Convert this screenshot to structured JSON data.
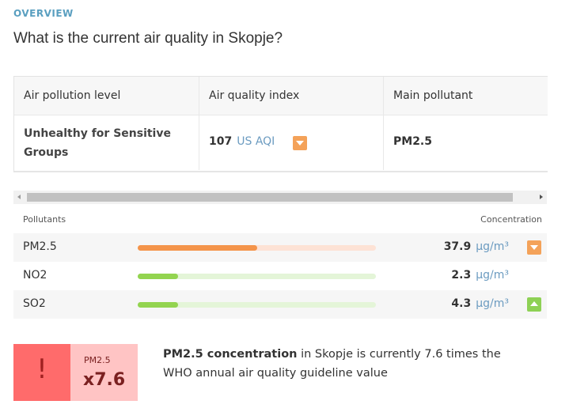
{
  "overview_label": "OVERVIEW",
  "question": "What is the current air quality in Skopje?",
  "summary_table": {
    "headers": [
      "Air pollution level",
      "Air quality index",
      "Main pollutant"
    ],
    "level": "Unhealthy for Sensitive Groups",
    "aqi_value": "107",
    "aqi_unit": "US AQI",
    "aqi_trend": "down",
    "main_pollutant": "PM2.5"
  },
  "pollutants": {
    "header_left": "Pollutants",
    "header_right": "Concentration",
    "rows": [
      {
        "name": "PM2.5",
        "value": "37.9",
        "unit": "µg/m³",
        "level": 0.5,
        "fill_color": "#f4944a",
        "track_color": "#fde2d5",
        "trend": "down"
      },
      {
        "name": "NO2",
        "value": "2.3",
        "unit": "µg/m³",
        "level": 0.17,
        "fill_color": "#93d450",
        "track_color": "#e4f5d8",
        "trend": "none"
      },
      {
        "name": "SO2",
        "value": "4.3",
        "unit": "µg/m³",
        "level": 0.17,
        "fill_color": "#93d450",
        "track_color": "#e4f5d8",
        "trend": "up"
      }
    ]
  },
  "alert": {
    "icon": "!",
    "pollutant": "PM2.5",
    "multiplier": "x7.6",
    "text_bold": "PM2.5 concentration",
    "text_rest": " in Skopje is currently 7.6 times the WHO annual air quality guideline value"
  },
  "colors": {
    "accent_blue": "#5a9fc0",
    "unhealthy_red": "#ff6b6b",
    "unhealthy_pink": "#ffc4c4",
    "trend_down_orange": "#f4a259",
    "trend_up_green": "#8ed155"
  }
}
